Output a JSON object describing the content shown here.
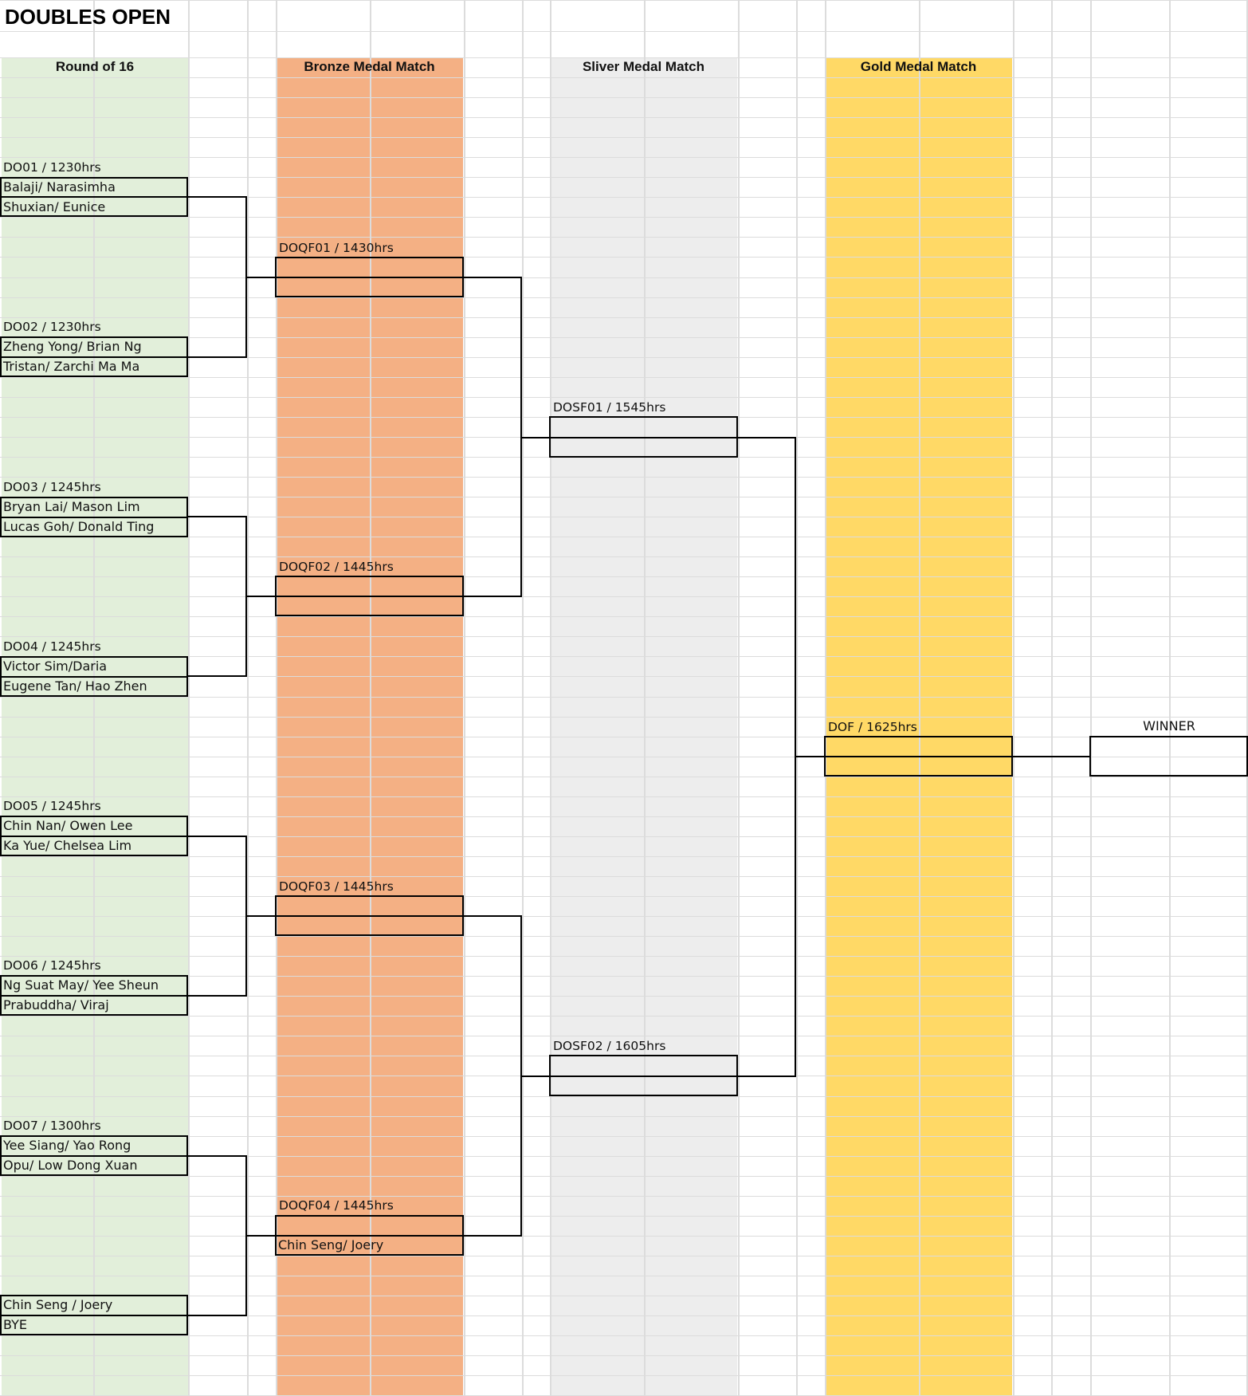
{
  "sheet_title": "DOUBLES OPEN",
  "colors": {
    "round16": "#e2efda",
    "bronze": "#f4b084",
    "silver": "#ededed",
    "gold": "#ffd966"
  },
  "columns": {
    "round16": "Round of 16",
    "bronze": "Bronze Medal Match",
    "silver": "Sliver Medal Match",
    "gold": "Gold Medal Match"
  },
  "round16": [
    {
      "label": "DO01 / 1230hrs",
      "team1": "Balaji/ Narasimha",
      "team2": "Shuxian/ Eunice"
    },
    {
      "label": "DO02 / 1230hrs",
      "team1": "Zheng Yong/ Brian Ng",
      "team2": "Tristan/ Zarchi Ma Ma"
    },
    {
      "label": "DO03 / 1245hrs",
      "team1": "Bryan Lai/ Mason Lim",
      "team2": "Lucas Goh/ Donald Ting"
    },
    {
      "label": "DO04 / 1245hrs",
      "team1": "Victor Sim/Daria",
      "team2": "Eugene Tan/ Hao Zhen"
    },
    {
      "label": "DO05 / 1245hrs",
      "team1": "Chin Nan/ Owen Lee",
      "team2": "Ka Yue/ Chelsea Lim"
    },
    {
      "label": "DO06 / 1245hrs",
      "team1": "Ng Suat May/ Yee Sheun",
      "team2": "Prabuddha/ Viraj"
    },
    {
      "label": "DO07 / 1300hrs",
      "team1": "Yee Siang/ Yao Rong",
      "team2": "Opu/ Low Dong Xuan"
    },
    {
      "label": "",
      "team1": "Chin Seng / Joery",
      "team2": "BYE"
    }
  ],
  "quarterfinals": [
    {
      "label": "DOQF01 / 1430hrs",
      "team1": "",
      "team2": ""
    },
    {
      "label": "DOQF02 / 1445hrs",
      "team1": "",
      "team2": ""
    },
    {
      "label": "DOQF03 / 1445hrs",
      "team1": "",
      "team2": ""
    },
    {
      "label": "DOQF04 / 1445hrs",
      "team1": "",
      "team2": "Chin Seng/ Joery"
    }
  ],
  "semifinals": [
    {
      "label": "DOSF01 / 1545hrs",
      "team1": "",
      "team2": ""
    },
    {
      "label": "DOSF02 / 1605hrs",
      "team1": "",
      "team2": ""
    }
  ],
  "final": {
    "label": "DOF / 1625hrs",
    "team1": "",
    "team2": ""
  },
  "winner": {
    "label": "WINNER",
    "value": ""
  }
}
